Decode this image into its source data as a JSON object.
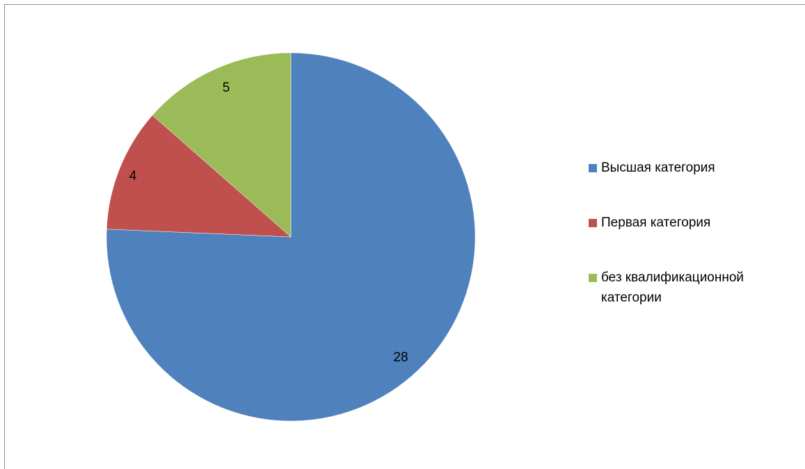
{
  "chart_data": {
    "type": "pie",
    "title": "",
    "start_angle_deg": 0,
    "direction": "clockwise",
    "slices": [
      {
        "label": "Высшая категория",
        "value": 28,
        "display": "28",
        "color": "#4f81bd"
      },
      {
        "label": "Первая категория",
        "value": 4,
        "display": "4",
        "color": "#c0504d"
      },
      {
        "label": "без квалификационной категории",
        "value": 5,
        "display": "5",
        "color": "#9bbb59"
      }
    ],
    "legend_position": "right"
  },
  "legend": {
    "items": [
      {
        "label": "Высшая категория",
        "color": "#4f81bd"
      },
      {
        "label": "Первая категория",
        "color": "#c0504d"
      },
      {
        "label": "без квалификационной категории",
        "color": "#9bbb59"
      }
    ]
  }
}
